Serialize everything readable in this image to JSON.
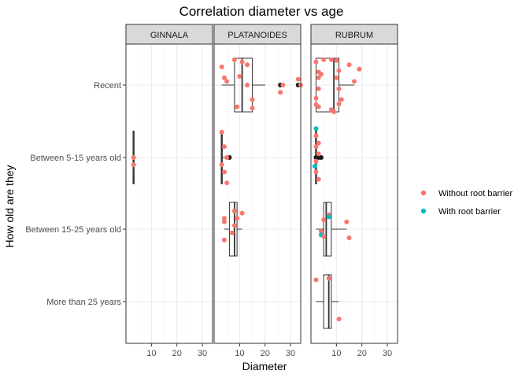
{
  "chart_data": {
    "type": "boxplot",
    "title": "Correlation diameter vs age",
    "xlabel": "Diameter",
    "ylabel": "How old are they",
    "xlim": [
      0,
      34
    ],
    "xticks": [
      10,
      20,
      30
    ],
    "facets": [
      "GINNALA",
      "PLATANOIDES",
      "RUBRUM"
    ],
    "categories": [
      "More than 25 years",
      "Between 15-25 years old",
      "Between 5-15 years old",
      "Recent"
    ],
    "legend": {
      "placement": "right",
      "entries": [
        {
          "name": "Without root barrier",
          "color": "#F8766D"
        },
        {
          "name": "With root barrier",
          "color": "#00BFC4"
        }
      ]
    },
    "boxes": [
      {
        "facet": "GINNALA",
        "category": "Between 5-15 years old",
        "q1": 3,
        "median": 3,
        "q3": 3,
        "whisker_low": 3,
        "whisker_high": 3
      },
      {
        "facet": "PLATANOIDES",
        "category": "Recent",
        "q1": 8,
        "median": 11,
        "q3": 15,
        "whisker_low": 3,
        "whisker_high": 20
      },
      {
        "facet": "PLATANOIDES",
        "category": "Between 5-15 years old",
        "q1": 3,
        "median": 3,
        "q3": 3,
        "whisker_low": 3,
        "whisker_high": 6
      },
      {
        "facet": "PLATANOIDES",
        "category": "Between 15-25 years old",
        "q1": 6,
        "median": 8,
        "q3": 9,
        "whisker_low": 4,
        "whisker_high": 11
      },
      {
        "facet": "RUBRUM",
        "category": "Recent",
        "q1": 2,
        "median": 9,
        "q3": 11,
        "whisker_low": 2,
        "whisker_high": 17
      },
      {
        "facet": "RUBRUM",
        "category": "Between 5-15 years old",
        "q1": 2,
        "median": 2,
        "q3": 2,
        "whisker_low": 2,
        "whisker_high": 2
      },
      {
        "facet": "RUBRUM",
        "category": "Between 15-25 years old",
        "q1": 5,
        "median": 6,
        "q3": 8,
        "whisker_low": 2,
        "whisker_high": 14
      },
      {
        "facet": "RUBRUM",
        "category": "More than 25 years",
        "q1": 5,
        "median": 7,
        "q3": 8,
        "whisker_low": 2,
        "whisker_high": 11
      }
    ],
    "outliers": [
      {
        "facet": "PLATANOIDES",
        "category": "Recent",
        "x": [
          26,
          33
        ]
      },
      {
        "facet": "PLATANOIDES",
        "category": "Between 5-15 years old",
        "x": [
          6
        ]
      },
      {
        "facet": "RUBRUM",
        "category": "Between 5-15 years old",
        "x": [
          2,
          3,
          4
        ]
      }
    ],
    "points": [
      {
        "facet": "GINNALA",
        "category": "Between 5-15 years old",
        "group": "Without root barrier",
        "x": 3,
        "jitter": 0.0
      },
      {
        "facet": "GINNALA",
        "category": "Between 5-15 years old",
        "group": "Without root barrier",
        "x": 3,
        "jitter": -0.1
      },
      {
        "facet": "PLATANOIDES",
        "category": "Recent",
        "group": "Without root barrier",
        "x": 3,
        "jitter": 0.25
      },
      {
        "facet": "PLATANOIDES",
        "category": "Recent",
        "group": "Without root barrier",
        "x": 4,
        "jitter": 0.1
      },
      {
        "facet": "PLATANOIDES",
        "category": "Recent",
        "group": "Without root barrier",
        "x": 5,
        "jitter": 0.05
      },
      {
        "facet": "PLATANOIDES",
        "category": "Recent",
        "group": "Without root barrier",
        "x": 8,
        "jitter": 0.35
      },
      {
        "facet": "PLATANOIDES",
        "category": "Recent",
        "group": "Without root barrier",
        "x": 9,
        "jitter": -0.3
      },
      {
        "facet": "PLATANOIDES",
        "category": "Recent",
        "group": "Without root barrier",
        "x": 10,
        "jitter": 0.12
      },
      {
        "facet": "PLATANOIDES",
        "category": "Recent",
        "group": "Without root barrier",
        "x": 11,
        "jitter": 0.32
      },
      {
        "facet": "PLATANOIDES",
        "category": "Recent",
        "group": "Without root barrier",
        "x": 13,
        "jitter": 0.28
      },
      {
        "facet": "PLATANOIDES",
        "category": "Recent",
        "group": "Without root barrier",
        "x": 13,
        "jitter": 0.0
      },
      {
        "facet": "PLATANOIDES",
        "category": "Recent",
        "group": "Without root barrier",
        "x": 15,
        "jitter": -0.32
      },
      {
        "facet": "PLATANOIDES",
        "category": "Recent",
        "group": "Without root barrier",
        "x": 15,
        "jitter": -0.2
      },
      {
        "facet": "PLATANOIDES",
        "category": "Recent",
        "group": "Without root barrier",
        "x": 26,
        "jitter": -0.1
      },
      {
        "facet": "PLATANOIDES",
        "category": "Recent",
        "group": "Without root barrier",
        "x": 27,
        "jitter": 0.0
      },
      {
        "facet": "PLATANOIDES",
        "category": "Recent",
        "group": "Without root barrier",
        "x": 33,
        "jitter": 0.08
      },
      {
        "facet": "PLATANOIDES",
        "category": "Recent",
        "group": "Without root barrier",
        "x": 34,
        "jitter": -0.0
      },
      {
        "facet": "PLATANOIDES",
        "category": "Between 5-15 years old",
        "group": "Without root barrier",
        "x": 3,
        "jitter": 0.35
      },
      {
        "facet": "PLATANOIDES",
        "category": "Between 5-15 years old",
        "group": "Without root barrier",
        "x": 4,
        "jitter": 0.15
      },
      {
        "facet": "PLATANOIDES",
        "category": "Between 5-15 years old",
        "group": "Without root barrier",
        "x": 5,
        "jitter": 0.0
      },
      {
        "facet": "PLATANOIDES",
        "category": "Between 5-15 years old",
        "group": "Without root barrier",
        "x": 3,
        "jitter": -0.1
      },
      {
        "facet": "PLATANOIDES",
        "category": "Between 5-15 years old",
        "group": "Without root barrier",
        "x": 4,
        "jitter": -0.2
      },
      {
        "facet": "PLATANOIDES",
        "category": "Between 5-15 years old",
        "group": "Without root barrier",
        "x": 5,
        "jitter": -0.35
      },
      {
        "facet": "PLATANOIDES",
        "category": "Between 15-25 years old",
        "group": "Without root barrier",
        "x": 4,
        "jitter": 0.15
      },
      {
        "facet": "PLATANOIDES",
        "category": "Between 15-25 years old",
        "group": "Without root barrier",
        "x": 4,
        "jitter": 0.1
      },
      {
        "facet": "PLATANOIDES",
        "category": "Between 15-25 years old",
        "group": "Without root barrier",
        "x": 8,
        "jitter": 0.25
      },
      {
        "facet": "PLATANOIDES",
        "category": "Between 15-25 years old",
        "group": "Without root barrier",
        "x": 9,
        "jitter": 0.15
      },
      {
        "facet": "PLATANOIDES",
        "category": "Between 15-25 years old",
        "group": "Without root barrier",
        "x": 11,
        "jitter": 0.22
      },
      {
        "facet": "PLATANOIDES",
        "category": "Between 15-25 years old",
        "group": "Without root barrier",
        "x": 8,
        "jitter": 0.05
      },
      {
        "facet": "PLATANOIDES",
        "category": "Between 15-25 years old",
        "group": "Without root barrier",
        "x": 7,
        "jitter": -0.05
      },
      {
        "facet": "PLATANOIDES",
        "category": "Between 15-25 years old",
        "group": "Without root barrier",
        "x": 4,
        "jitter": -0.15
      },
      {
        "facet": "RUBRUM",
        "category": "Recent",
        "group": "Without root barrier",
        "x": 2,
        "jitter": 0.32
      },
      {
        "facet": "RUBRUM",
        "category": "Recent",
        "group": "Without root barrier",
        "x": 5,
        "jitter": 0.35
      },
      {
        "facet": "RUBRUM",
        "category": "Recent",
        "group": "Without root barrier",
        "x": 8,
        "jitter": 0.35
      },
      {
        "facet": "RUBRUM",
        "category": "Recent",
        "group": "Without root barrier",
        "x": 10,
        "jitter": 0.34
      },
      {
        "facet": "RUBRUM",
        "category": "Recent",
        "group": "Without root barrier",
        "x": 19,
        "jitter": 0.22
      },
      {
        "facet": "RUBRUM",
        "category": "Recent",
        "group": "Without root barrier",
        "x": 3,
        "jitter": 0.18
      },
      {
        "facet": "RUBRUM",
        "category": "Recent",
        "group": "Without root barrier",
        "x": 4,
        "jitter": 0.15
      },
      {
        "facet": "RUBRUM",
        "category": "Recent",
        "group": "Without root barrier",
        "x": 11,
        "jitter": 0.2
      },
      {
        "facet": "RUBRUM",
        "category": "Recent",
        "group": "Without root barrier",
        "x": 15,
        "jitter": 0.28
      },
      {
        "facet": "RUBRUM",
        "category": "Recent",
        "group": "Without root barrier",
        "x": 17,
        "jitter": 0.05
      },
      {
        "facet": "RUBRUM",
        "category": "Recent",
        "group": "Without root barrier",
        "x": 3,
        "jitter": 0.1
      },
      {
        "facet": "RUBRUM",
        "category": "Recent",
        "group": "Without root barrier",
        "x": 10,
        "jitter": 0.1
      },
      {
        "facet": "RUBRUM",
        "category": "Recent",
        "group": "Without root barrier",
        "x": 3,
        "jitter": -0.05
      },
      {
        "facet": "RUBRUM",
        "category": "Recent",
        "group": "Without root barrier",
        "x": 11,
        "jitter": -0.05
      },
      {
        "facet": "RUBRUM",
        "category": "Recent",
        "group": "Without root barrier",
        "x": 2,
        "jitter": -0.18
      },
      {
        "facet": "RUBRUM",
        "category": "Recent",
        "group": "Without root barrier",
        "x": 12,
        "jitter": -0.2
      },
      {
        "facet": "RUBRUM",
        "category": "Recent",
        "group": "Without root barrier",
        "x": 2,
        "jitter": -0.27
      },
      {
        "facet": "RUBRUM",
        "category": "Recent",
        "group": "Without root barrier",
        "x": 11,
        "jitter": -0.26
      },
      {
        "facet": "RUBRUM",
        "category": "Recent",
        "group": "Without root barrier",
        "x": 3,
        "jitter": -0.3
      },
      {
        "facet": "RUBRUM",
        "category": "Recent",
        "group": "Without root barrier",
        "x": 8,
        "jitter": -0.34
      },
      {
        "facet": "RUBRUM",
        "category": "Recent",
        "group": "Without root barrier",
        "x": 9,
        "jitter": -0.37
      },
      {
        "facet": "RUBRUM",
        "category": "Between 5-15 years old",
        "group": "With root barrier",
        "x": 2,
        "jitter": 0.4
      },
      {
        "facet": "RUBRUM",
        "category": "Between 5-15 years old",
        "group": "Without root barrier",
        "x": 2,
        "jitter": 0.3
      },
      {
        "facet": "RUBRUM",
        "category": "Between 5-15 years old",
        "group": "Without root barrier",
        "x": 3,
        "jitter": 0.2
      },
      {
        "facet": "RUBRUM",
        "category": "Between 5-15 years old",
        "group": "Without root barrier",
        "x": 2,
        "jitter": 0.15
      },
      {
        "facet": "RUBRUM",
        "category": "Between 5-15 years old",
        "group": "Without root barrier",
        "x": 3,
        "jitter": 0.05
      },
      {
        "facet": "RUBRUM",
        "category": "Between 5-15 years old",
        "group": "Without root barrier",
        "x": 2,
        "jitter": -0.05
      },
      {
        "facet": "RUBRUM",
        "category": "Between 5-15 years old",
        "group": "With root barrier",
        "x": 1.5,
        "jitter": -0.12
      },
      {
        "facet": "RUBRUM",
        "category": "Between 5-15 years old",
        "group": "Without root barrier",
        "x": 2,
        "jitter": -0.2
      },
      {
        "facet": "RUBRUM",
        "category": "Between 5-15 years old",
        "group": "Without root barrier",
        "x": 3,
        "jitter": -0.3
      },
      {
        "facet": "RUBRUM",
        "category": "Between 15-25 years old",
        "group": "Without root barrier",
        "x": 7,
        "jitter": 0.2
      },
      {
        "facet": "RUBRUM",
        "category": "Between 15-25 years old",
        "group": "With root barrier",
        "x": 7,
        "jitter": 0.17
      },
      {
        "facet": "RUBRUM",
        "category": "Between 15-25 years old",
        "group": "Without root barrier",
        "x": 5,
        "jitter": 0.13
      },
      {
        "facet": "RUBRUM",
        "category": "Between 15-25 years old",
        "group": "Without root barrier",
        "x": 14,
        "jitter": 0.1
      },
      {
        "facet": "RUBRUM",
        "category": "Between 15-25 years old",
        "group": "Without root barrier",
        "x": 4,
        "jitter": -0.03
      },
      {
        "facet": "RUBRUM",
        "category": "Between 15-25 years old",
        "group": "With root barrier",
        "x": 4,
        "jitter": -0.08
      },
      {
        "facet": "RUBRUM",
        "category": "Between 15-25 years old",
        "group": "Without root barrier",
        "x": 5,
        "jitter": -0.1
      },
      {
        "facet": "RUBRUM",
        "category": "Between 15-25 years old",
        "group": "Without root barrier",
        "x": 15,
        "jitter": -0.12
      },
      {
        "facet": "RUBRUM",
        "category": "More than 25 years",
        "group": "Without root barrier",
        "x": 2,
        "jitter": 0.3
      },
      {
        "facet": "RUBRUM",
        "category": "More than 25 years",
        "group": "Without root barrier",
        "x": 7,
        "jitter": 0.32
      },
      {
        "facet": "RUBRUM",
        "category": "More than 25 years",
        "group": "Without root barrier",
        "x": 11,
        "jitter": -0.24
      }
    ]
  }
}
